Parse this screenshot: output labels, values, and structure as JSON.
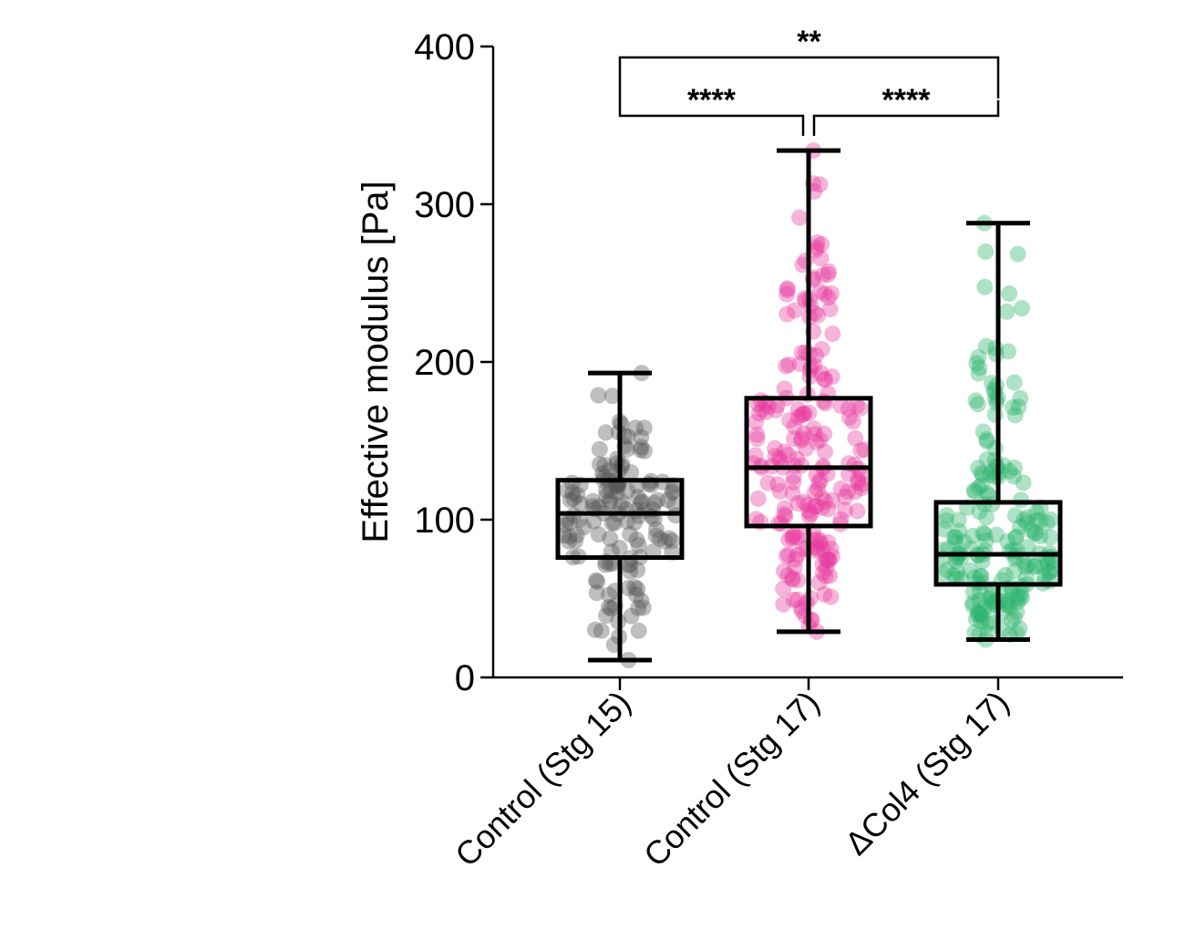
{
  "chart_data": {
    "type": "box",
    "ylabel": "Effective modulus [Pa]",
    "xlabel": "",
    "ylim": [
      0,
      400
    ],
    "yticks": [
      "0",
      "100",
      "200",
      "300",
      "400"
    ],
    "grid": false,
    "legend": "none",
    "categories": [
      "Control (Stg 15)",
      "Control (Stg 17)",
      "ΔCol4 (Stg 17)"
    ],
    "colors": [
      "#555555",
      "#e8399e",
      "#2bb36b"
    ],
    "boxes": [
      {
        "min": 11,
        "q1": 76,
        "median": 104,
        "q3": 125,
        "max": 193
      },
      {
        "min": 29,
        "q1": 96,
        "median": 133,
        "q3": 177,
        "max": 334
      },
      {
        "min": 24,
        "q1": 59,
        "median": 78,
        "q3": 111,
        "max": 288
      }
    ],
    "points_per_group": [
      150,
      220,
      200
    ],
    "significance": [
      {
        "from": 0,
        "to": 1,
        "label": "****"
      },
      {
        "from": 1,
        "to": 2,
        "label": "****"
      },
      {
        "from": 0,
        "to": 2,
        "label": "**"
      }
    ]
  }
}
